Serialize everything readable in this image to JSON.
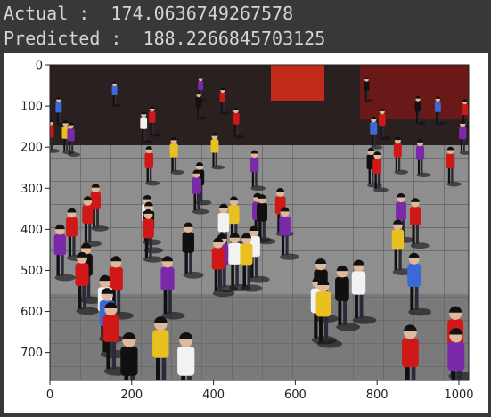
{
  "output": {
    "actual_label": "Actual :",
    "actual_value": "174.0636749267578",
    "predicted_label": "Predicted :",
    "predicted_value": "188.2266845703125"
  },
  "image_axes": {
    "x_ticks": [
      "0",
      "200",
      "400",
      "600",
      "800",
      "1000"
    ],
    "y_ticks": [
      "0",
      "100",
      "200",
      "300",
      "400",
      "500",
      "600",
      "700"
    ]
  },
  "image": {
    "subject": "crowd-photo",
    "palette": {
      "pavement": "#8c8c8c",
      "pavement_dark": "#5e5e5e",
      "shadow": "#101010",
      "skin": "#e0b89a",
      "red": "#d01818",
      "white": "#f2f2f2",
      "blue": "#3a6ad8",
      "purple": "#7a2aa8",
      "yellow": "#e8c020"
    }
  }
}
